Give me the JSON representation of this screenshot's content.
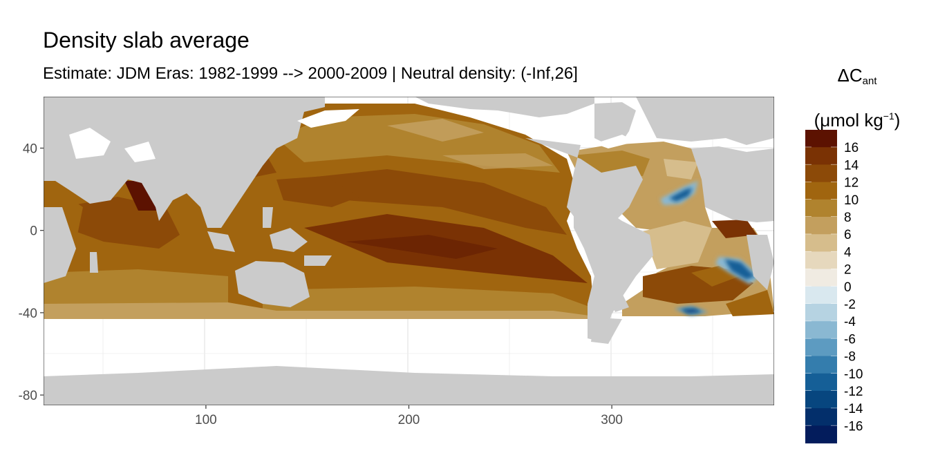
{
  "title": "Density slab average",
  "subtitle": "Estimate: JDM Eras: 1982-1999 --> 2000-2009 | Neutral density: (-Inf,26]",
  "legend": {
    "symbol": "ΔC",
    "subscript": "ant",
    "unit_open": "(μmol kg",
    "unit_sup": "−1",
    "unit_close": ")",
    "bins": [
      {
        "label": "16",
        "color": "#5c1201"
      },
      {
        "label": "14",
        "color": "#7a3204"
      },
      {
        "label": "12",
        "color": "#8c4a08"
      },
      {
        "label": "10",
        "color": "#a0650f"
      },
      {
        "label": "8",
        "color": "#b0832e"
      },
      {
        "label": "6",
        "color": "#c39f5e"
      },
      {
        "label": "4",
        "color": "#d6bd8c"
      },
      {
        "label": "2",
        "color": "#e6d8bd"
      },
      {
        "label": "0",
        "color": "#f0ebe2"
      },
      {
        "label": "-2",
        "color": "#d9e8ef"
      },
      {
        "label": "-4",
        "color": "#b6d3e2"
      },
      {
        "label": "-6",
        "color": "#8ab8d2"
      },
      {
        "label": "-8",
        "color": "#5d9bc1"
      },
      {
        "label": "-10",
        "color": "#347dad"
      },
      {
        "label": "-12",
        "color": "#155f97"
      },
      {
        "label": "-14",
        "color": "#07467f"
      },
      {
        "label": "-16",
        "color": "#032f6b"
      },
      {
        "label": "",
        "color": "#031c5c"
      }
    ]
  },
  "x_axis": {
    "ticks": [
      100,
      200,
      300
    ],
    "range": [
      20,
      380
    ]
  },
  "y_axis": {
    "ticks": [
      40,
      0,
      -40,
      -80
    ],
    "range": [
      -85,
      65
    ]
  },
  "colors": {
    "land": "#cbcbcb",
    "nodata": "#ffffff",
    "grid": "#ebebeb",
    "panel_border": "#333333"
  }
}
